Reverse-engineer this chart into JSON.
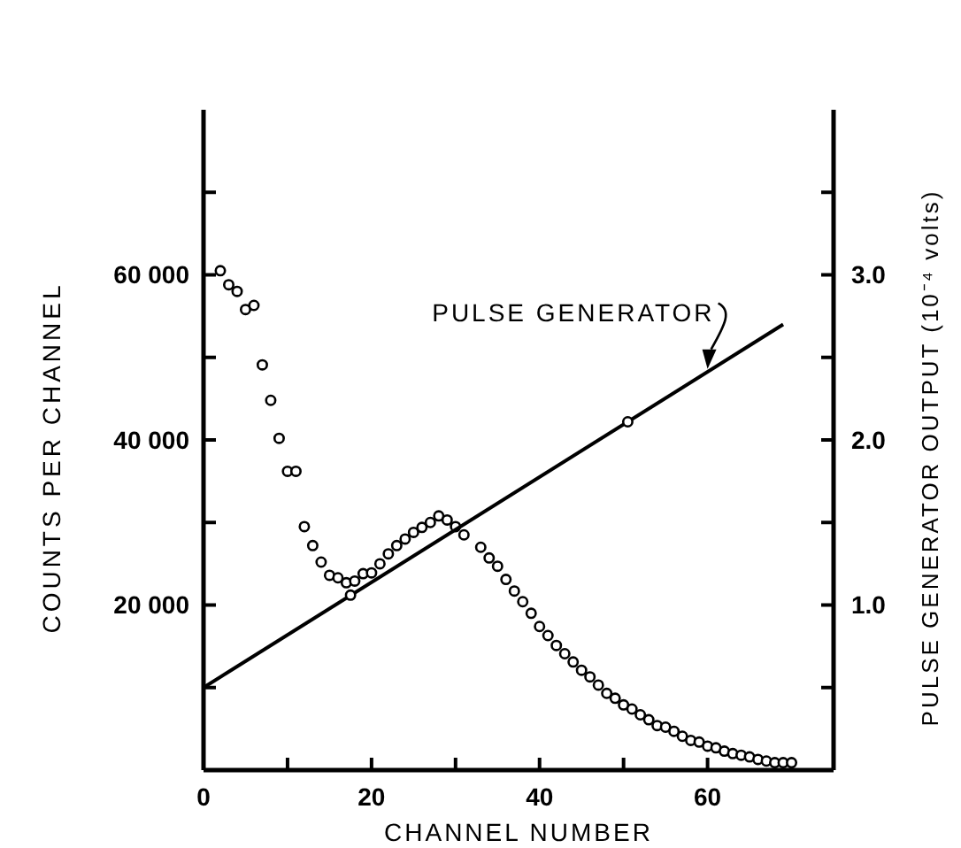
{
  "chart_data": {
    "type": "scatter",
    "xlabel": "CHANNEL NUMBER",
    "ylabel": "COUNTS PER CHANNEL",
    "y2label": "PULSE GENERATOR OUTPUT (10⁻⁴ volts)",
    "xlim": [
      0,
      75
    ],
    "xticks": [
      0,
      {
        "value": 10,
        "label": null
      },
      20,
      {
        "value": 30,
        "label": null
      },
      40,
      {
        "value": 50,
        "label": null
      },
      60,
      {
        "value": 70,
        "label": null
      }
    ],
    "ylim": [
      0,
      80000
    ],
    "yticks": [
      {
        "value": 10000,
        "label": null
      },
      {
        "value": 20000,
        "label": "20 000"
      },
      {
        "value": 30000,
        "label": null
      },
      {
        "value": 40000,
        "label": "40 000"
      },
      {
        "value": 50000,
        "label": null
      },
      {
        "value": 60000,
        "label": "60 000"
      },
      {
        "value": 70000,
        "label": null
      }
    ],
    "y2lim": [
      0,
      4
    ],
    "y2ticks": [
      {
        "value": 0.5,
        "label": null
      },
      {
        "value": 1,
        "label": "1.0"
      },
      {
        "value": 1.5,
        "label": null
      },
      {
        "value": 2,
        "label": "2.0"
      },
      {
        "value": 2.5,
        "label": null
      },
      {
        "value": 3,
        "label": "3.0"
      },
      {
        "value": 3.5,
        "label": null
      }
    ],
    "grid": false,
    "marker": "circle",
    "series": [
      {
        "color": "#000000",
        "x": [
          2,
          3,
          4,
          5,
          6,
          7,
          8,
          9,
          10,
          11,
          12,
          13,
          14,
          15,
          16,
          17,
          18,
          19,
          20,
          21,
          22,
          23,
          24,
          25,
          26,
          27,
          28,
          29,
          30,
          31,
          33,
          34,
          35,
          36,
          37,
          38,
          39,
          40,
          41,
          42,
          43,
          44,
          45,
          46,
          47,
          48,
          49,
          50,
          51,
          52,
          53,
          54,
          55,
          56,
          57,
          58,
          59,
          60,
          61,
          62,
          63,
          64,
          65,
          66,
          67,
          68,
          69,
          70
        ],
        "values": [
          60500,
          58800,
          58000,
          55800,
          56300,
          49100,
          44800,
          40200,
          36200,
          36200,
          29500,
          27200,
          25200,
          23600,
          23300,
          22700,
          22900,
          23800,
          23900,
          25000,
          26200,
          27200,
          28000,
          28800,
          29400,
          30000,
          30800,
          30300,
          29500,
          28500,
          27000,
          25700,
          24700,
          23100,
          21700,
          20400,
          19000,
          17400,
          16300,
          15100,
          14100,
          13100,
          12100,
          11300,
          10300,
          9300,
          8700,
          7900,
          7400,
          6700,
          6100,
          5400,
          5200,
          4700,
          4100,
          3600,
          3400,
          2900,
          2700,
          2300,
          2000,
          1800,
          1600,
          1300,
          1100,
          900,
          900,
          900
        ]
      },
      {
        "type": "line",
        "color": "#000000",
        "axis": "y2",
        "marker": "none",
        "line_style": "solid",
        "x": [
          0,
          69
        ],
        "values": [
          0.5,
          2.7
        ]
      },
      {
        "color": "#000000",
        "axis": "y2",
        "x": [
          17.5,
          50.5
        ],
        "values": [
          1.06,
          2.11
        ]
      }
    ],
    "annotations": [
      {
        "text": "PULSE GENERATOR",
        "x": 60,
        "y": 48400
      }
    ]
  }
}
